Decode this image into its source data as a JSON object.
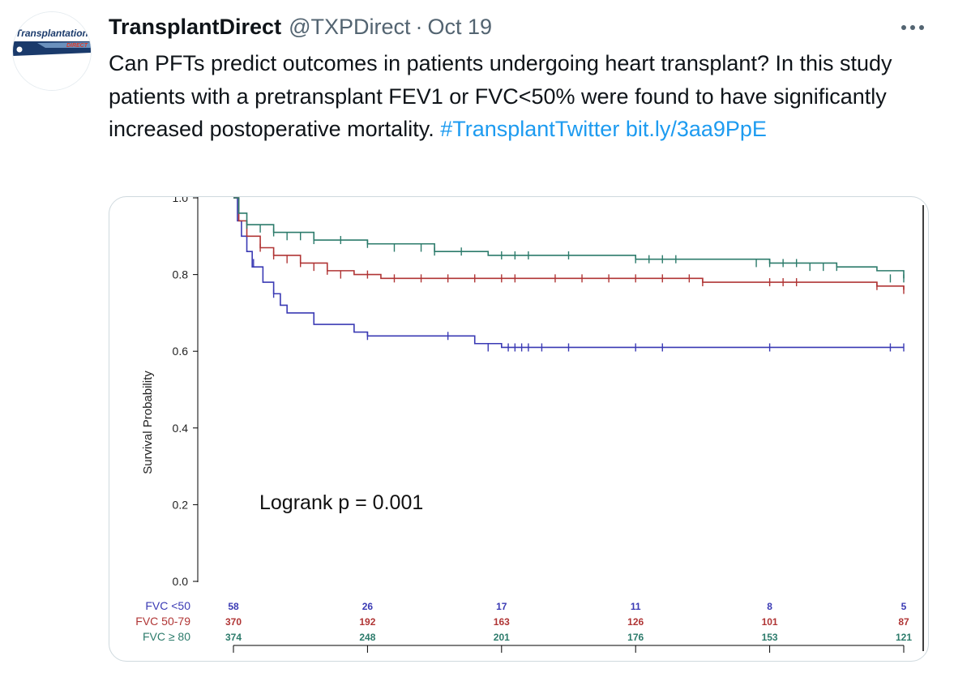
{
  "tweet": {
    "avatar_text_top": "Transplantation",
    "avatar_text_bottom": "DIRECT",
    "display_name": "TransplantDirect",
    "handle": "@TXPDirect",
    "separator": "·",
    "date": "Oct 19",
    "more_icon": "more-horizontal-icon",
    "text_main": "Can PFTs predict outcomes in patients undergoing heart transplant? In this study patients with a pretransplant FEV1 or FVC<50% were found to have significantly increased postoperative mortality.",
    "hashtag": "#TransplantTwitter",
    "link": "bit.ly/3aa9PpE"
  },
  "chart_data": {
    "type": "line",
    "title": "",
    "xlabel": "",
    "ylabel": "Survival Probability",
    "ylim": [
      0,
      1
    ],
    "xlim": [
      0,
      5
    ],
    "y_ticks": [
      "0.0",
      "0.2",
      "0.4",
      "0.6",
      "0.8",
      "1.0"
    ],
    "annotation": "Logrank p = 0.001",
    "series": [
      {
        "name": "FVC <50",
        "color": "#3a3ab4",
        "points": [
          [
            0,
            1.0
          ],
          [
            0.03,
            0.94
          ],
          [
            0.06,
            0.9
          ],
          [
            0.1,
            0.86
          ],
          [
            0.14,
            0.82
          ],
          [
            0.22,
            0.78
          ],
          [
            0.3,
            0.75
          ],
          [
            0.35,
            0.72
          ],
          [
            0.4,
            0.7
          ],
          [
            0.6,
            0.67
          ],
          [
            0.9,
            0.65
          ],
          [
            1.0,
            0.64
          ],
          [
            1.5,
            0.64
          ],
          [
            1.8,
            0.62
          ],
          [
            2.0,
            0.61
          ],
          [
            5.0,
            0.61
          ]
        ],
        "censors": [
          [
            0.15,
            0.83
          ],
          [
            0.3,
            0.75
          ],
          [
            1.0,
            0.64
          ],
          [
            1.6,
            0.64
          ],
          [
            1.9,
            0.61
          ],
          [
            2.05,
            0.61
          ],
          [
            2.1,
            0.61
          ],
          [
            2.15,
            0.61
          ],
          [
            2.2,
            0.61
          ],
          [
            2.3,
            0.61
          ],
          [
            2.5,
            0.61
          ],
          [
            3.0,
            0.61
          ],
          [
            3.2,
            0.61
          ],
          [
            4.0,
            0.61
          ],
          [
            4.9,
            0.61
          ],
          [
            5.0,
            0.61
          ]
        ]
      },
      {
        "name": "FVC 50-79",
        "color": "#b03535",
        "points": [
          [
            0,
            1.0
          ],
          [
            0.04,
            0.94
          ],
          [
            0.1,
            0.9
          ],
          [
            0.2,
            0.87
          ],
          [
            0.3,
            0.85
          ],
          [
            0.5,
            0.83
          ],
          [
            0.7,
            0.81
          ],
          [
            0.9,
            0.8
          ],
          [
            1.1,
            0.79
          ],
          [
            2.0,
            0.79
          ],
          [
            3.0,
            0.79
          ],
          [
            3.5,
            0.78
          ],
          [
            4.5,
            0.78
          ],
          [
            4.8,
            0.77
          ],
          [
            5.0,
            0.76
          ]
        ],
        "censors": [
          [
            0.2,
            0.87
          ],
          [
            0.3,
            0.85
          ],
          [
            0.4,
            0.84
          ],
          [
            0.5,
            0.83
          ],
          [
            0.6,
            0.82
          ],
          [
            0.7,
            0.81
          ],
          [
            0.8,
            0.8
          ],
          [
            1.0,
            0.8
          ],
          [
            1.2,
            0.79
          ],
          [
            1.4,
            0.79
          ],
          [
            1.6,
            0.79
          ],
          [
            1.8,
            0.79
          ],
          [
            2.0,
            0.79
          ],
          [
            2.1,
            0.79
          ],
          [
            2.4,
            0.79
          ],
          [
            2.6,
            0.79
          ],
          [
            2.8,
            0.79
          ],
          [
            3.0,
            0.79
          ],
          [
            3.2,
            0.79
          ],
          [
            3.4,
            0.79
          ],
          [
            3.5,
            0.78
          ],
          [
            4.0,
            0.78
          ],
          [
            4.1,
            0.78
          ],
          [
            4.2,
            0.78
          ],
          [
            4.8,
            0.77
          ],
          [
            5.0,
            0.76
          ]
        ]
      },
      {
        "name": "FVC ≥ 80",
        "color": "#2c7b6b",
        "points": [
          [
            0,
            1.0
          ],
          [
            0.04,
            0.96
          ],
          [
            0.1,
            0.93
          ],
          [
            0.3,
            0.91
          ],
          [
            0.6,
            0.89
          ],
          [
            1.0,
            0.88
          ],
          [
            1.5,
            0.86
          ],
          [
            1.9,
            0.85
          ],
          [
            2.5,
            0.85
          ],
          [
            3.0,
            0.84
          ],
          [
            3.5,
            0.84
          ],
          [
            4.0,
            0.83
          ],
          [
            4.5,
            0.82
          ],
          [
            4.8,
            0.81
          ],
          [
            5.0,
            0.79
          ]
        ],
        "censors": [
          [
            0.1,
            0.93
          ],
          [
            0.2,
            0.92
          ],
          [
            0.3,
            0.91
          ],
          [
            0.4,
            0.9
          ],
          [
            0.5,
            0.9
          ],
          [
            0.6,
            0.89
          ],
          [
            0.8,
            0.89
          ],
          [
            1.0,
            0.88
          ],
          [
            1.2,
            0.87
          ],
          [
            1.4,
            0.87
          ],
          [
            1.5,
            0.86
          ],
          [
            1.7,
            0.86
          ],
          [
            2.0,
            0.85
          ],
          [
            2.1,
            0.85
          ],
          [
            2.2,
            0.85
          ],
          [
            2.5,
            0.85
          ],
          [
            3.0,
            0.84
          ],
          [
            3.1,
            0.84
          ],
          [
            3.2,
            0.84
          ],
          [
            3.3,
            0.84
          ],
          [
            3.9,
            0.83
          ],
          [
            4.0,
            0.83
          ],
          [
            4.1,
            0.83
          ],
          [
            4.2,
            0.83
          ],
          [
            4.3,
            0.82
          ],
          [
            4.4,
            0.82
          ],
          [
            4.5,
            0.82
          ],
          [
            4.9,
            0.79
          ],
          [
            5.0,
            0.79
          ]
        ]
      }
    ],
    "risk_table": {
      "rows": [
        {
          "label": "FVC <50",
          "color": "#3a3ab4",
          "values": [
            "58",
            "26",
            "17",
            "11",
            "8",
            "5"
          ]
        },
        {
          "label": "FVC 50-79",
          "color": "#b03535",
          "values": [
            "370",
            "192",
            "163",
            "126",
            "101",
            "87"
          ]
        },
        {
          "label": "FVC ≥ 80",
          "color": "#2c7b6b",
          "values": [
            "374",
            "248",
            "201",
            "176",
            "153",
            "121"
          ]
        }
      ]
    }
  }
}
